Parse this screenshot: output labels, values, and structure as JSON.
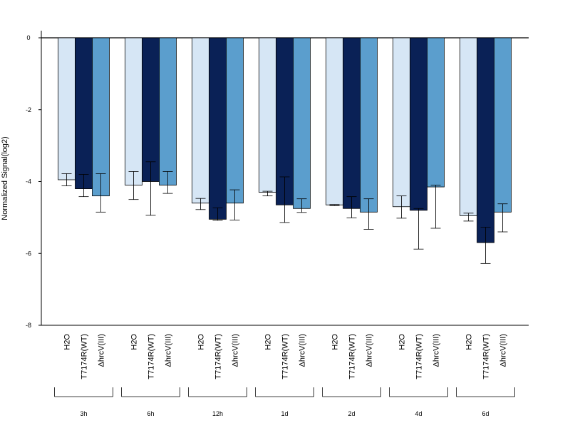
{
  "chart_data": {
    "type": "bar",
    "title": "",
    "xlabel": "",
    "ylabel": "Normalized Signal(log2)",
    "ylim": [
      -8,
      0.2
    ],
    "yticks": [
      0,
      -2,
      -4,
      -6,
      -8
    ],
    "grid": false,
    "legend": "none",
    "groups": [
      "3h",
      "6h",
      "12h",
      "1d",
      "2d",
      "4d",
      "6d"
    ],
    "series": [
      {
        "name": "H2O",
        "color": "#d6e6f5",
        "values": [
          -3.95,
          -4.1,
          -4.6,
          -4.3,
          -4.65,
          -4.7,
          -4.95
        ],
        "err_low": [
          -4.12,
          -4.5,
          -4.78,
          -4.4,
          -4.67,
          -5.02,
          -5.1
        ],
        "err_high": [
          -3.78,
          -3.72,
          -4.47,
          -4.27,
          -4.64,
          -4.4,
          -4.88
        ]
      },
      {
        "name": "T7174R(WT)",
        "color": "#0a2156",
        "values": [
          -4.2,
          -4.0,
          -5.05,
          -4.65,
          -4.75,
          -4.8,
          -5.7
        ],
        "err_low": [
          -4.42,
          -4.94,
          -5.08,
          -5.14,
          -5.01,
          -5.88,
          -6.28
        ],
        "err_high": [
          -3.8,
          -3.45,
          -4.73,
          -3.87,
          -4.42,
          -4.75,
          -5.27
        ]
      },
      {
        "name": "ΔhrcV(III)",
        "color": "#5b9ecd",
        "values": [
          -4.4,
          -4.1,
          -4.6,
          -4.75,
          -4.85,
          -4.15,
          -4.85
        ],
        "err_low": [
          -4.85,
          -4.33,
          -5.07,
          -4.86,
          -5.33,
          -5.3,
          -5.4
        ],
        "err_high": [
          -3.78,
          -3.72,
          -4.23,
          -4.48,
          -4.48,
          -4.1,
          -4.62
        ]
      }
    ]
  },
  "colors": {
    "axis": "#000000",
    "bar_stroke": "#000000"
  }
}
